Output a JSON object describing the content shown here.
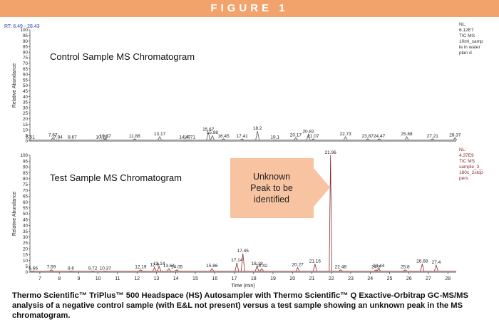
{
  "header": {
    "title": "FIGURE 1"
  },
  "caption": "Thermo Scientific™ TriPlus™ 500 Headspace (HS) Autosampler with Thermo Scientific™ Q Exactive-Orbitrap GC-MS/MS analysis of a negative control sample (with E&L not present) versus a test sample showing an unknown peak in the MS chromatogram.",
  "chart_data": [
    {
      "type": "line",
      "title": "Control Sample MS Chromatogram",
      "rt_label": "RT: 6.49 - 28.43",
      "y_label": "Relative Abundance",
      "nl_lines": [
        "NL:",
        "6.12E7",
        "TIC MS",
        "10ml_samp",
        "le in water",
        "plan d"
      ],
      "nl_color": "#333333",
      "color": "#555555",
      "xlim": [
        6.49,
        28.43
      ],
      "ylim": [
        0,
        100
      ],
      "yticks": [
        0,
        5,
        10,
        15,
        20,
        25,
        30,
        35,
        40,
        45,
        50,
        55,
        60,
        65,
        70,
        75,
        80,
        85,
        90,
        95,
        100
      ],
      "x": [
        6.51,
        7.67,
        7.94,
        8.67,
        10.18,
        10.37,
        11.88,
        13.17,
        14.47,
        14.71,
        15.67,
        15.88,
        16.45,
        17.41,
        18.2,
        19.1,
        20.17,
        20.82,
        21.07,
        22.73,
        23.87,
        24.47,
        25.88,
        27.21,
        28.37
      ],
      "values": [
        1,
        3,
        1,
        1,
        1,
        2,
        2,
        4,
        1,
        1,
        8,
        5,
        2,
        2,
        9,
        1,
        3,
        6,
        2,
        4,
        2,
        2,
        4,
        2,
        3
      ]
    },
    {
      "type": "line",
      "title": "Test Sample MS Chromatogram",
      "y_label": "Relative Abundance",
      "x_label": "Time (min)",
      "nl_lines": [
        "NL:",
        "4.37E9",
        "TIC MS",
        "sample_3_",
        "180c_2stop",
        "pers"
      ],
      "nl_color": "#8b2b2b",
      "annotation": [
        "Unknown",
        "Peak to be",
        "identified"
      ],
      "color": "#8b2b2b",
      "xlim": [
        6.49,
        28.43
      ],
      "ylim": [
        0,
        100
      ],
      "yticks": [
        0,
        5,
        10,
        15,
        20,
        25,
        30,
        35,
        40,
        45,
        50,
        55,
        60,
        65,
        70,
        75,
        80,
        85,
        90,
        95,
        100
      ],
      "xticks": [
        7,
        8,
        9,
        10,
        11,
        12,
        13,
        14,
        15,
        16,
        17,
        18,
        19,
        20,
        21,
        22,
        23,
        24,
        25,
        26,
        27,
        28
      ],
      "x": [
        6.66,
        7.59,
        8.6,
        9.72,
        10.37,
        12.19,
        12.9,
        13.14,
        13.64,
        14.05,
        15.86,
        17.14,
        17.45,
        18.18,
        18.42,
        20.27,
        21.16,
        21.96,
        22.48,
        24.3,
        24.44,
        25.8,
        26.68,
        27.4
      ],
      "values": [
        1,
        2,
        1,
        1,
        1,
        2,
        4,
        5,
        3,
        2,
        3,
        8,
        16,
        5,
        3,
        4,
        7,
        100,
        2,
        2,
        3,
        2,
        7,
        6
      ]
    }
  ]
}
